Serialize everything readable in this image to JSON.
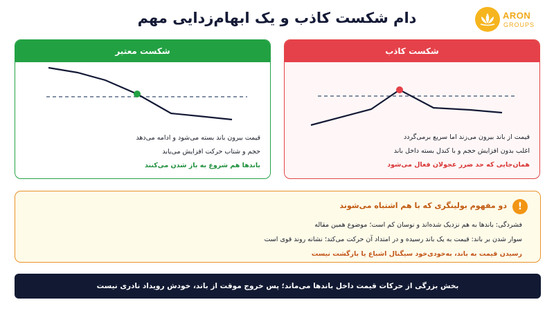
{
  "title": "دام شکست کاذب و یک ابهام‌زدایی مهم",
  "logo": {
    "name": "ARON",
    "sub": "GROUPS",
    "icon": "lotus-icon",
    "color": "#f6b51e"
  },
  "valid_panel": {
    "header": "شکست معتبر",
    "accent": "#22a143",
    "lines": [
      "قیمت بیرون باند بسته می‌شود و ادامه می‌دهد",
      "حجم و شتاب حرکت افزایش می‌یابد",
      "باندها هم شروع به باز شدن می‌کنند"
    ]
  },
  "false_panel": {
    "header": "شکست کاذب",
    "accent": "#e5414a",
    "lines": [
      "قیمت از باند بیرون می‌زند اما سریع برمی‌گردد",
      "اغلب بدون افزایش حجم و با کندل بسته داخل باند",
      "همان‌جایی که حد ضرر عجولان فعال می‌شود"
    ]
  },
  "note": {
    "icon": "warning-icon",
    "title": "دو مفهوم بولینگری که با هم اشتباه می‌شوند",
    "lines": [
      "فشردگی: باندها به هم نزدیک شده‌اند و نوسان کم است؛ موضوع همین مقاله",
      "سوار شدن بر باند: قیمت به یک باند رسیده و در امتداد آن حرکت می‌کند؛ نشانه روند قوی است",
      "رسیدن قیمت به باند، به‌خودی‌خود سیگنال اشباع یا بازگشت نیست"
    ]
  },
  "banner": "بخش بزرگی از حرکات قیمت داخل باندها می‌ماند؛ پس خروج موقت از باند، خودش رویداد نادری نیست"
}
